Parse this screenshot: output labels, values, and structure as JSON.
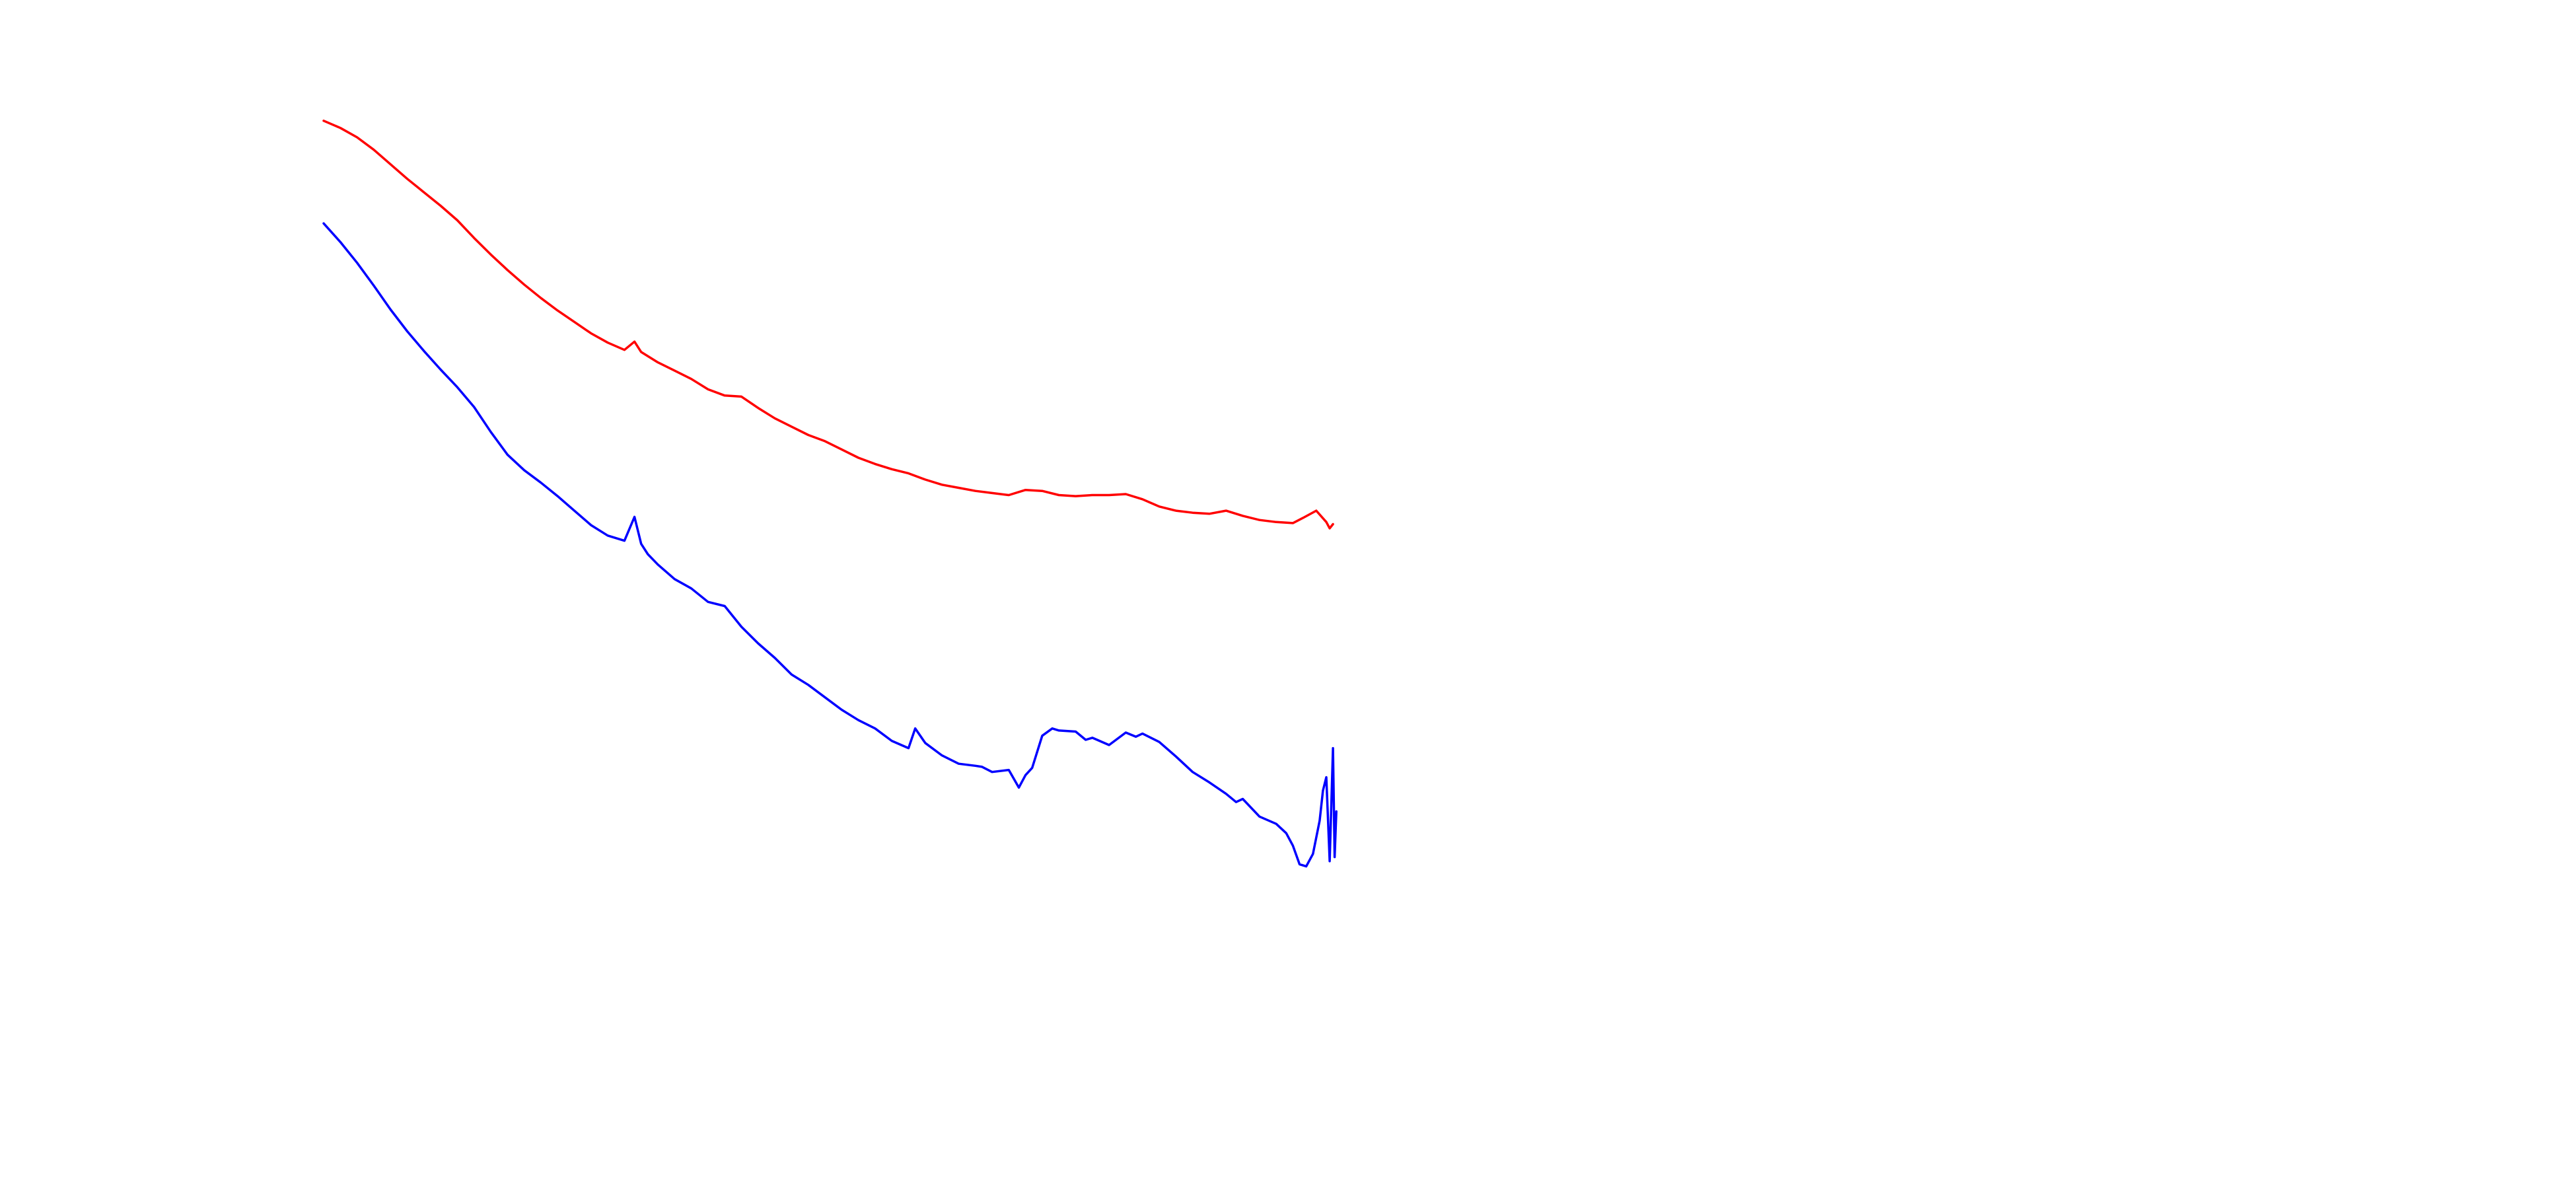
{
  "chart_data": {
    "type": "line",
    "title": "",
    "xlabel": "",
    "ylabel": "",
    "grid": false,
    "axes_visible": false,
    "xlim": [
      0,
      300
    ],
    "ylim": [
      0,
      1
    ],
    "series": [
      {
        "color": "#ff0000",
        "points": [
          [
            0,
            0.925
          ],
          [
            5,
            0.918
          ],
          [
            10,
            0.909
          ],
          [
            15,
            0.897
          ],
          [
            20,
            0.883
          ],
          [
            25,
            0.869
          ],
          [
            30,
            0.856
          ],
          [
            35,
            0.843
          ],
          [
            40,
            0.829
          ],
          [
            45,
            0.812
          ],
          [
            50,
            0.796
          ],
          [
            55,
            0.781
          ],
          [
            60,
            0.767
          ],
          [
            65,
            0.754
          ],
          [
            70,
            0.742
          ],
          [
            75,
            0.731
          ],
          [
            80,
            0.72
          ],
          [
            85,
            0.711
          ],
          [
            90,
            0.704
          ],
          [
            93,
            0.712
          ],
          [
            95,
            0.702
          ],
          [
            100,
            0.692
          ],
          [
            105,
            0.684
          ],
          [
            110,
            0.676
          ],
          [
            115,
            0.666
          ],
          [
            120,
            0.66
          ],
          [
            125,
            0.659
          ],
          [
            130,
            0.648
          ],
          [
            135,
            0.638
          ],
          [
            140,
            0.63
          ],
          [
            145,
            0.622
          ],
          [
            150,
            0.616
          ],
          [
            155,
            0.608
          ],
          [
            160,
            0.6
          ],
          [
            165,
            0.594
          ],
          [
            170,
            0.589
          ],
          [
            175,
            0.585
          ],
          [
            180,
            0.579
          ],
          [
            185,
            0.574
          ],
          [
            190,
            0.571
          ],
          [
            195,
            0.568
          ],
          [
            200,
            0.566
          ],
          [
            205,
            0.564
          ],
          [
            210,
            0.569
          ],
          [
            215,
            0.568
          ],
          [
            220,
            0.564
          ],
          [
            225,
            0.563
          ],
          [
            230,
            0.564
          ],
          [
            235,
            0.564
          ],
          [
            240,
            0.565
          ],
          [
            245,
            0.56
          ],
          [
            250,
            0.553
          ],
          [
            255,
            0.549
          ],
          [
            260,
            0.547
          ],
          [
            265,
            0.546
          ],
          [
            270,
            0.549
          ],
          [
            275,
            0.544
          ],
          [
            280,
            0.54
          ],
          [
            285,
            0.538
          ],
          [
            290,
            0.537
          ],
          [
            293,
            0.542
          ],
          [
            297,
            0.549
          ],
          [
            300,
            0.538
          ],
          [
            301,
            0.532
          ],
          [
            302,
            0.536
          ]
        ]
      },
      {
        "color": "#0000ff",
        "points": [
          [
            0,
            0.826
          ],
          [
            5,
            0.808
          ],
          [
            10,
            0.788
          ],
          [
            15,
            0.766
          ],
          [
            20,
            0.743
          ],
          [
            25,
            0.722
          ],
          [
            30,
            0.703
          ],
          [
            35,
            0.685
          ],
          [
            40,
            0.668
          ],
          [
            45,
            0.649
          ],
          [
            50,
            0.625
          ],
          [
            55,
            0.603
          ],
          [
            60,
            0.588
          ],
          [
            65,
            0.576
          ],
          [
            70,
            0.563
          ],
          [
            75,
            0.549
          ],
          [
            80,
            0.535
          ],
          [
            85,
            0.525
          ],
          [
            90,
            0.52
          ],
          [
            93,
            0.543
          ],
          [
            95,
            0.517
          ],
          [
            97,
            0.507
          ],
          [
            100,
            0.497
          ],
          [
            105,
            0.483
          ],
          [
            110,
            0.474
          ],
          [
            115,
            0.461
          ],
          [
            120,
            0.457
          ],
          [
            125,
            0.437
          ],
          [
            130,
            0.421
          ],
          [
            135,
            0.407
          ],
          [
            140,
            0.391
          ],
          [
            145,
            0.381
          ],
          [
            150,
            0.369
          ],
          [
            155,
            0.357
          ],
          [
            160,
            0.347
          ],
          [
            165,
            0.339
          ],
          [
            170,
            0.327
          ],
          [
            175,
            0.32
          ],
          [
            177,
            0.339
          ],
          [
            180,
            0.325
          ],
          [
            185,
            0.313
          ],
          [
            190,
            0.305
          ],
          [
            195,
            0.303
          ],
          [
            197,
            0.302
          ],
          [
            200,
            0.297
          ],
          [
            205,
            0.299
          ],
          [
            208,
            0.282
          ],
          [
            210,
            0.294
          ],
          [
            212,
            0.301
          ],
          [
            215,
            0.332
          ],
          [
            218,
            0.339
          ],
          [
            220,
            0.337
          ],
          [
            225,
            0.336
          ],
          [
            228,
            0.328
          ],
          [
            230,
            0.33
          ],
          [
            235,
            0.323
          ],
          [
            240,
            0.335
          ],
          [
            243,
            0.331
          ],
          [
            245,
            0.334
          ],
          [
            250,
            0.326
          ],
          [
            255,
            0.312
          ],
          [
            260,
            0.297
          ],
          [
            265,
            0.287
          ],
          [
            270,
            0.276
          ],
          [
            273,
            0.268
          ],
          [
            275,
            0.271
          ],
          [
            280,
            0.254
          ],
          [
            285,
            0.247
          ],
          [
            288,
            0.238
          ],
          [
            290,
            0.226
          ],
          [
            292,
            0.208
          ],
          [
            294,
            0.206
          ],
          [
            296,
            0.218
          ],
          [
            298,
            0.25
          ],
          [
            299,
            0.279
          ],
          [
            300,
            0.292
          ],
          [
            301,
            0.211
          ],
          [
            302,
            0.32
          ],
          [
            302.5,
            0.215
          ],
          [
            303,
            0.259
          ]
        ]
      }
    ]
  }
}
